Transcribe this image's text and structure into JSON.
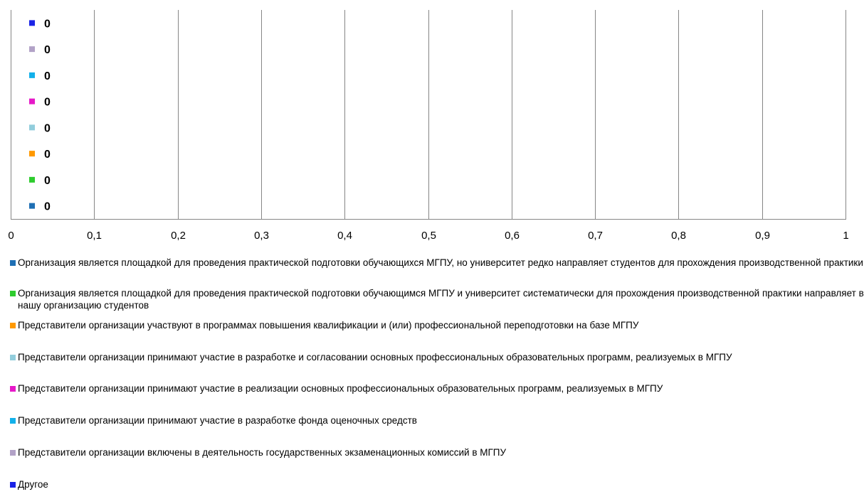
{
  "chart_data": {
    "type": "bar",
    "orientation": "horizontal",
    "title": "",
    "xlabel": "",
    "ylabel": "",
    "xlim": [
      0,
      1
    ],
    "x_ticks": [
      "0",
      "0,1",
      "0,2",
      "0,3",
      "0,4",
      "0,5",
      "0,6",
      "0,7",
      "0,8",
      "0,9",
      "1"
    ],
    "grid": true,
    "legend_position": "bottom",
    "series": [
      {
        "name": "Организация является площадкой для проведения практической подготовки обучающихся МГПУ, но университет редко направляет студентов для прохождения производственной практики",
        "value": 0,
        "label": "0",
        "color": "#1f6fb4"
      },
      {
        "name": "Организация является площадкой для проведения практической подготовки обучающимся МГПУ и университет систематически для прохождения производственной практики направляет в нашу организацию студентов",
        "value": 0,
        "label": "0",
        "color": "#2ecc2e"
      },
      {
        "name": "Представители организации участвуют в программах повышения квалификации и (или) профессиональной переподготовки на базе МГПУ",
        "value": 0,
        "label": "0",
        "color": "#ff9900"
      },
      {
        "name": "Представители организации принимают участие в разработке и согласовании основных профессиональных образовательных программ, реализуемых в МГПУ",
        "value": 0,
        "label": "0",
        "color": "#92cddc"
      },
      {
        "name": "Представители организации принимают участие в реализации основных профессиональных образовательных программ, реализуемых в МГПУ",
        "value": 0,
        "label": "0",
        "color": "#e619c8"
      },
      {
        "name": "Представители организации принимают участие в разработке фонда оценочных средств",
        "value": 0,
        "label": "0",
        "color": "#12b0ea"
      },
      {
        "name": "Представители организации включены в деятельность государственных экзаменационных комиссий в МГПУ",
        "value": 0,
        "label": "0",
        "color": "#b2a2c7"
      },
      {
        "name": "Другое",
        "value": 0,
        "label": "0",
        "color": "#1a23e6"
      }
    ]
  }
}
